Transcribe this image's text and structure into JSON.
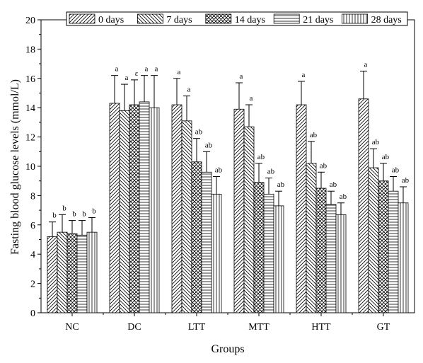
{
  "chart_data": {
    "type": "bar",
    "title": "",
    "xlabel": "Groups",
    "ylabel": "Fasting blood glucose levels (mmol/L)",
    "ylim": [
      0,
      20
    ],
    "yticks": [
      "0",
      "2",
      "4",
      "6",
      "8",
      "10",
      "12",
      "14",
      "16",
      "18",
      "20"
    ],
    "categories": [
      "NC",
      "DC",
      "LTT",
      "MTT",
      "HTT",
      "GT"
    ],
    "legend_position": "top",
    "series": [
      {
        "name": "0 days",
        "pattern": "diag-right",
        "values": [
          5.2,
          14.3,
          14.2,
          13.9,
          14.2,
          14.6
        ],
        "errors": [
          1.0,
          1.9,
          1.8,
          1.8,
          1.6,
          1.9
        ],
        "labels": [
          "b",
          "a",
          "a",
          "a",
          "a",
          "a"
        ]
      },
      {
        "name": "7 days",
        "pattern": "diag-left",
        "values": [
          5.5,
          13.8,
          13.1,
          12.7,
          10.2,
          9.9
        ],
        "errors": [
          1.2,
          1.8,
          1.7,
          1.5,
          1.5,
          1.3
        ],
        "labels": [
          "b",
          "a",
          "a",
          "a",
          "ab",
          "ab"
        ]
      },
      {
        "name": "14 days",
        "pattern": "crosshatch",
        "values": [
          5.4,
          14.2,
          10.3,
          8.9,
          8.5,
          9.0
        ],
        "errors": [
          0.9,
          1.7,
          1.6,
          1.3,
          1.1,
          1.2
        ],
        "labels": [
          "b",
          "ε",
          "ab",
          "ab",
          "ab",
          "ab"
        ]
      },
      {
        "name": "21 days",
        "pattern": "horizontal",
        "values": [
          5.3,
          14.4,
          9.6,
          8.1,
          7.4,
          8.3
        ],
        "errors": [
          1.0,
          1.8,
          1.4,
          1.1,
          0.9,
          1.0
        ],
        "labels": [
          "b",
          "a",
          "ab",
          "ab",
          "ab",
          "ab"
        ]
      },
      {
        "name": "28 days",
        "pattern": "vertical",
        "values": [
          5.5,
          14.0,
          8.1,
          7.3,
          6.7,
          7.5
        ],
        "errors": [
          1.0,
          2.2,
          1.2,
          1.0,
          0.8,
          1.1
        ],
        "labels": [
          "b",
          "a",
          "ab",
          "ab",
          "ab",
          "ab"
        ]
      }
    ]
  }
}
